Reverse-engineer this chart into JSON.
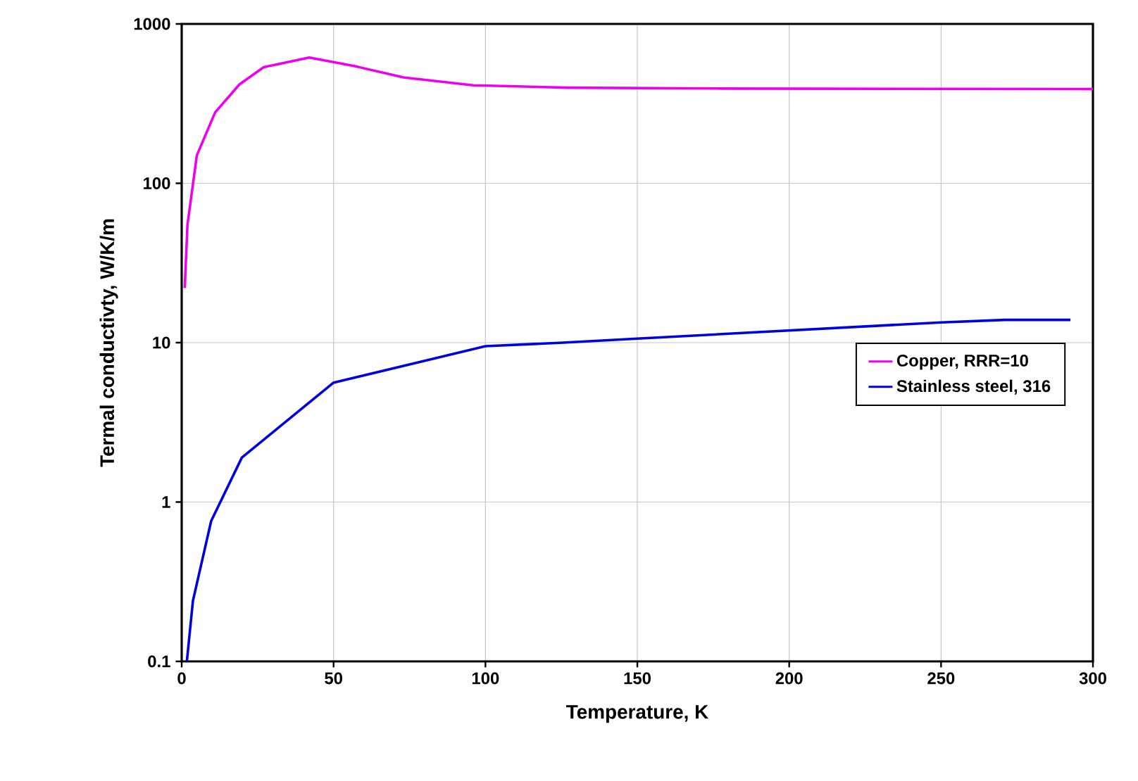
{
  "chart_data": {
    "type": "line",
    "xlabel": "Temperature, K",
    "ylabel": "Termal conductivty, W/K/m",
    "xlim": [
      0,
      300
    ],
    "ylim": [
      0.1,
      1000
    ],
    "xticks": [
      0,
      50,
      100,
      150,
      200,
      250,
      300
    ],
    "yticks": [
      0.1,
      1,
      10,
      100,
      1000
    ],
    "log": "y",
    "grid": true,
    "legend": "right",
    "marker": "none",
    "line_style": "solid",
    "series": [
      {
        "name": "Copper, RRR=10",
        "color": "#ee00ee",
        "x": [
          1,
          1.9,
          5,
          11,
          19,
          27,
          42,
          57,
          73,
          96,
          127,
          178,
          300
        ],
        "values": [
          22,
          55,
          150,
          278,
          417,
          535,
          616,
          543,
          462,
          412,
          398,
          393,
          390
        ]
      },
      {
        "name": "Stainless steel, 316",
        "color": "#0000dd",
        "x": [
          1.7,
          3.7,
          9.7,
          19.8,
          49.9,
          100,
          125.5,
          150,
          250,
          271,
          292.6
        ],
        "values": [
          0.1,
          0.24,
          0.76,
          1.9,
          5.6,
          9.5,
          10,
          10.6,
          13.4,
          13.9,
          13.9
        ]
      }
    ]
  }
}
